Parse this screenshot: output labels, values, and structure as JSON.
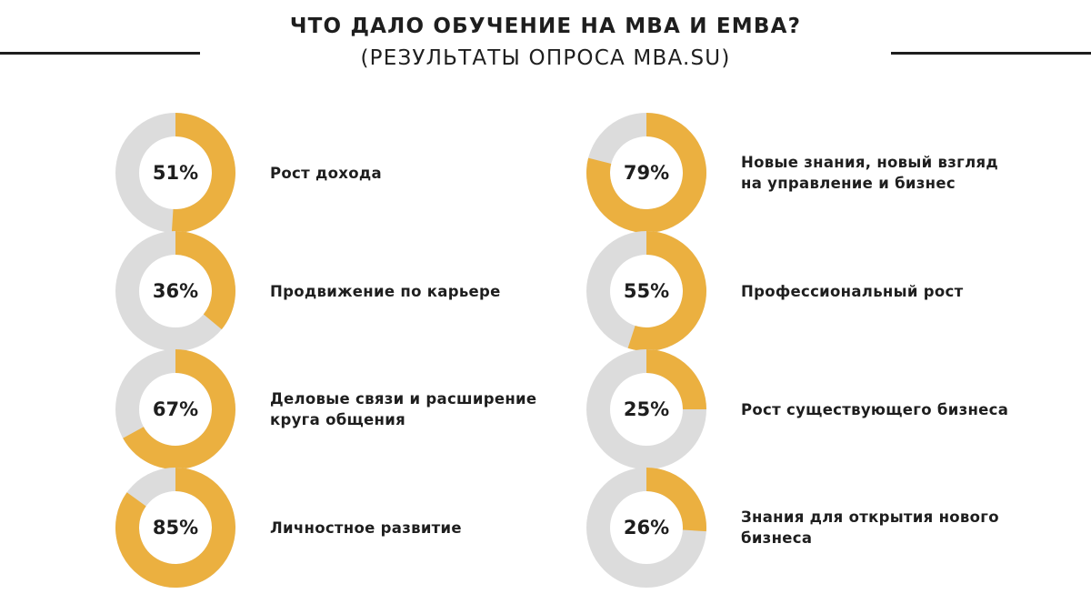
{
  "header": {
    "title": "ЧТО ДАЛО ОБУЧЕНИЕ НА MBA И EMBA?",
    "subtitle": "(РЕЗУЛЬТАТЫ ОПРОСА MBA.SU)"
  },
  "colors": {
    "accent": "#EBB040",
    "track": "#DCDCDC",
    "text": "#1E1E1E"
  },
  "chart_data": {
    "type": "pie",
    "subtype": "donut",
    "title": "ЧТО ДАЛО ОБУЧЕНИЕ НА MBA И EMBA?",
    "subtitle": "(РЕЗУЛЬТАТЫ ОПРОСА MBA.SU)",
    "unit": "%",
    "items": [
      {
        "label": "Рост дохода",
        "value": 51,
        "value_label": "51%"
      },
      {
        "label": "Новые знания, новый взгляд на управление и бизнес",
        "value": 79,
        "value_label": "79%"
      },
      {
        "label": "Продвижение по карьере",
        "value": 36,
        "value_label": "36%"
      },
      {
        "label": "Профессиональный рост",
        "value": 55,
        "value_label": "55%"
      },
      {
        "label": "Деловые связи и расширение круга общения",
        "value": 67,
        "value_label": "67%"
      },
      {
        "label": "Рост существующего бизнеса",
        "value": 25,
        "value_label": "25%"
      },
      {
        "label": "Личностное развитие",
        "value": 85,
        "value_label": "85%"
      },
      {
        "label": "Знания для открытия нового бизнеса",
        "value": 26,
        "value_label": "26%"
      }
    ]
  }
}
